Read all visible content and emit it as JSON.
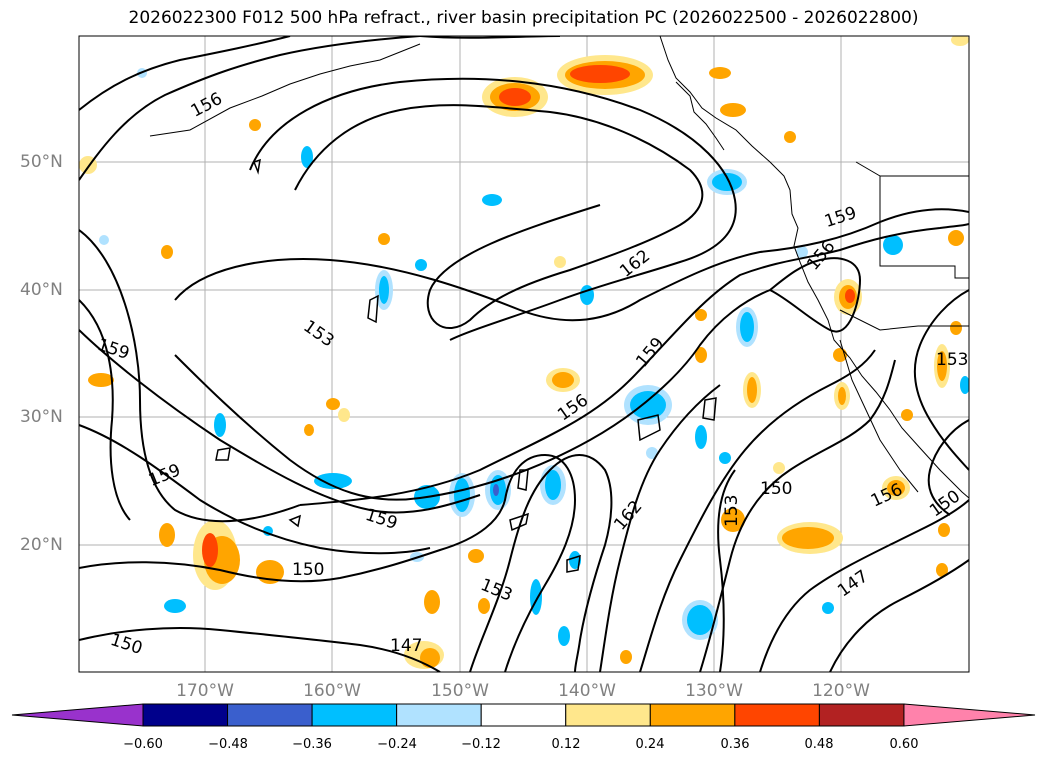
{
  "title": "2026022300 F012 500 hPa refract., river basin precipitation PC (2026022500 - 2026022800)",
  "map": {
    "lat_labels": [
      "50°N",
      "40°N",
      "30°N",
      "20°N"
    ],
    "lon_labels": [
      "170°W",
      "160°W",
      "150°W",
      "140°W",
      "130°W",
      "120°W"
    ],
    "contour_labels": [
      "156",
      "162",
      "153",
      "159",
      "159",
      "156",
      "159",
      "159",
      "162",
      "153",
      "150",
      "147",
      "150",
      "156",
      "150",
      "147",
      "150",
      "156",
      "159",
      "153",
      "153"
    ]
  },
  "colorbar": {
    "colors": [
      "#9932cc",
      "#00008b",
      "#3a5fcd",
      "#00bfff",
      "#b0e2ff",
      "#ffffff",
      "#ffe78c",
      "#ffa500",
      "#ff4500",
      "#b22222",
      "#ff82ab"
    ],
    "ticks": [
      "−0.60",
      "−0.48",
      "−0.36",
      "−0.24",
      "−0.12",
      "0.12",
      "0.24",
      "0.36",
      "0.48",
      "0.60"
    ]
  }
}
